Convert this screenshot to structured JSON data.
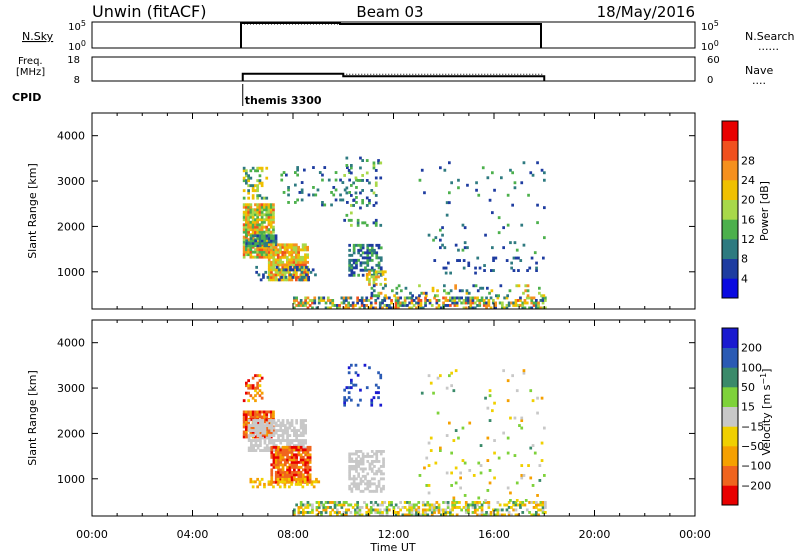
{
  "header": {
    "site": "Unwin (fitACF)",
    "beam": "Beam 03",
    "date": "18/May/2016"
  },
  "strip_nsky": {
    "label": "N.Sky",
    "left_ticks": [
      "10^5",
      "10^0"
    ],
    "right_ticks": [
      "10^5",
      "10^0"
    ],
    "right_label": "N.Search",
    "right_legend": "......"
  },
  "strip_freq": {
    "label_line1": "Freq.",
    "label_line2": "[MHz]",
    "left_ticks": [
      "18",
      "8"
    ],
    "right_ticks": [
      "60",
      "0"
    ],
    "right_label": "Nave",
    "right_legend": "....",
    "freq_series": [
      [
        6.0,
        11
      ],
      [
        10.0,
        11
      ],
      [
        10.0,
        10
      ],
      [
        18.0,
        10
      ]
    ],
    "nave_series": [
      [
        10.0,
        10
      ],
      [
        18.0,
        10
      ]
    ]
  },
  "cpid": {
    "label": "CPID",
    "program": "themis 3300",
    "start": 6.0
  },
  "time_axis": {
    "label": "Time UT",
    "start": 0,
    "end": 24,
    "ticks": [
      "00:00",
      "04:00",
      "08:00",
      "12:00",
      "16:00",
      "20:00",
      "00:00"
    ],
    "data_start": 6.0,
    "data_end": 18.0
  },
  "chart_data": [
    {
      "type": "heatmap",
      "name": "power",
      "ylabel": "Slant Range [km]",
      "ylim": [
        180,
        4500
      ],
      "yticks": [
        1000,
        2000,
        3000,
        4000
      ],
      "colorbar": {
        "label": "Power [dB]",
        "ticks": [
          "4",
          "8",
          "12",
          "16",
          "20",
          "24",
          "28"
        ],
        "colors": [
          "#0a0ae0",
          "#1e3ca0",
          "#2e7a80",
          "#4cb04c",
          "#a8d84a",
          "#f0c000",
          "#f5901e",
          "#f0501e",
          "#e80000"
        ]
      },
      "regions": [
        {
          "t0": 6.0,
          "t1": 7.2,
          "r0": 1300,
          "r1": 2500,
          "dens": 0.85,
          "v": [
            12,
            30
          ]
        },
        {
          "t0": 6.1,
          "t1": 7.3,
          "r0": 1550,
          "r1": 1800,
          "dens": 0.9,
          "v": [
            4,
            16
          ]
        },
        {
          "t0": 7.0,
          "t1": 8.6,
          "r0": 800,
          "r1": 1600,
          "dens": 0.85,
          "v": [
            16,
            30
          ]
        },
        {
          "t0": 6.0,
          "t1": 6.9,
          "r0": 2600,
          "r1": 3300,
          "dens": 0.35,
          "v": [
            8,
            24
          ]
        },
        {
          "t0": 6.5,
          "t1": 9.0,
          "r0": 800,
          "r1": 1100,
          "dens": 0.25,
          "v": [
            4,
            12
          ]
        },
        {
          "t0": 7.5,
          "t1": 10.5,
          "r0": 2450,
          "r1": 3300,
          "dens": 0.1,
          "v": [
            4,
            16
          ]
        },
        {
          "t0": 10.2,
          "t1": 11.5,
          "r0": 900,
          "r1": 1600,
          "dens": 0.55,
          "v": [
            4,
            14
          ]
        },
        {
          "t0": 10.9,
          "t1": 11.7,
          "r0": 700,
          "r1": 1000,
          "dens": 0.6,
          "v": [
            16,
            26
          ]
        },
        {
          "t0": 10.0,
          "t1": 11.5,
          "r0": 2000,
          "r1": 3500,
          "dens": 0.15,
          "v": [
            4,
            18
          ]
        },
        {
          "t0": 13.5,
          "t1": 18.0,
          "r0": 950,
          "r1": 1300,
          "dens": 0.12,
          "v": [
            4,
            10
          ]
        },
        {
          "t0": 13.0,
          "t1": 18.0,
          "r0": 1400,
          "r1": 3400,
          "dens": 0.03,
          "v": [
            4,
            16
          ]
        },
        {
          "t0": 8.0,
          "t1": 18.0,
          "r0": 180,
          "r1": 450,
          "dens": 0.55,
          "v": [
            4,
            30
          ]
        },
        {
          "t0": 11.0,
          "t1": 18.0,
          "r0": 450,
          "r1": 700,
          "dens": 0.15,
          "v": [
            4,
            28
          ]
        }
      ]
    },
    {
      "type": "heatmap",
      "name": "velocity",
      "ylabel": "Slant Range [km]",
      "ylim": [
        180,
        4500
      ],
      "yticks": [
        1000,
        2000,
        3000,
        4000
      ],
      "colorbar": {
        "label": "Velocity [m s^-1]",
        "ticks": [
          "200",
          "100",
          "50",
          "15",
          "−15",
          "−50",
          "−100",
          "−200"
        ],
        "colors": [
          "#1a1ad0",
          "#2a5ab4",
          "#3a8a6a",
          "#7ed23a",
          "#c8c8c8",
          "#f0d000",
          "#f5a000",
          "#f0641e",
          "#e80000"
        ]
      },
      "regions": [
        {
          "t0": 6.0,
          "t1": 7.2,
          "r0": 1900,
          "r1": 2500,
          "dens": 0.85,
          "v": [
            -250,
            -60
          ]
        },
        {
          "t0": 6.2,
          "t1": 8.5,
          "r0": 1600,
          "r1": 2300,
          "dens": 0.7,
          "v": [
            -14,
            14
          ]
        },
        {
          "t0": 7.1,
          "t1": 8.7,
          "r0": 900,
          "r1": 1700,
          "dens": 0.85,
          "v": [
            -250,
            -60
          ]
        },
        {
          "t0": 6.0,
          "t1": 9.0,
          "r0": 800,
          "r1": 1000,
          "dens": 0.3,
          "v": [
            -80,
            -20
          ]
        },
        {
          "t0": 6.0,
          "t1": 6.8,
          "r0": 2700,
          "r1": 3300,
          "dens": 0.35,
          "v": [
            -250,
            -15
          ]
        },
        {
          "t0": 10.2,
          "t1": 11.6,
          "r0": 700,
          "r1": 1600,
          "dens": 0.55,
          "v": [
            -14,
            14
          ]
        },
        {
          "t0": 10.0,
          "t1": 11.5,
          "r0": 2600,
          "r1": 3500,
          "dens": 0.12,
          "v": [
            100,
            250
          ]
        },
        {
          "t0": 8.0,
          "t1": 18.0,
          "r0": 180,
          "r1": 500,
          "dens": 0.5,
          "v": [
            -80,
            80
          ]
        },
        {
          "t0": 13.0,
          "t1": 18.0,
          "r0": 500,
          "r1": 3400,
          "dens": 0.03,
          "v": [
            -60,
            60
          ]
        }
      ]
    }
  ]
}
